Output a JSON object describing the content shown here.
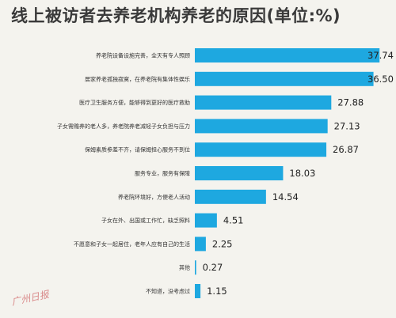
{
  "title": "线上被访者去养老机构养老的原因(单位:%)",
  "watermark": "广州日报",
  "colors": {
    "bar": "#1ea8e0",
    "background": "#f4f3ee",
    "title": "#3a3a3a"
  },
  "chart_data": {
    "type": "bar",
    "orientation": "horizontal",
    "title": "线上被访者去养老机构养老的原因(单位:%)",
    "categories": [
      "养老院设备设施完善，全天有专人照顾",
      "居家养老孤独寂寞，在养老院有集体性娱乐",
      "医疗卫生服务方便，能够得到更好的医疗救助",
      "子女需赡养的老人多，养老院养老减轻子女负担与压力",
      "保姆素质参差不齐，请保姆担心服务不到位",
      "服务专业，服务有保障",
      "养老院环境好，方便老人活动",
      "子女在外、出国或工作忙，缺乏照料",
      "不愿意和子女一起居住，老年人应有自己的生活",
      "其他",
      "不知道，没考虑过"
    ],
    "values": [
      37.74,
      36.5,
      27.88,
      27.13,
      26.87,
      18.03,
      14.54,
      4.51,
      2.25,
      0.27,
      1.15
    ],
    "value_labels": [
      "37.74",
      "36.50",
      "27.88",
      "27.13",
      "26.87",
      "18.03",
      "14.54",
      "4.51",
      "2.25",
      "0.27",
      "1.15"
    ],
    "xlim": [
      0,
      40
    ],
    "grid": false,
    "legend": "none"
  }
}
